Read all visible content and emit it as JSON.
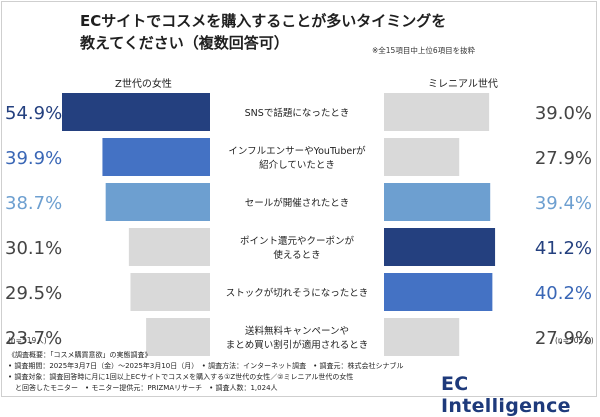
{
  "title_line1": "ECサイトでコスメを購入することが多いタイミングを",
  "title_line2": "教えてください（複数回答可）",
  "subnote": "※全15項目中上位6項目を抜粋",
  "left_group": "Z世代の女性",
  "right_group": "ミレニアル世代",
  "left_n": "(n=519人)",
  "right_n": "(n=505人)",
  "chart_data": {
    "type": "bar",
    "orientation": "horizontal-butterfly",
    "value_max": 54.9,
    "categories": [
      [
        "SNSで話題になったとき"
      ],
      [
        "インフルエンサーやYouTuberが",
        "紹介していたとき"
      ],
      [
        "セールが開催されたとき"
      ],
      [
        "ポイント還元やクーポンが",
        "使えるとき"
      ],
      [
        "ストックが切れそうになったとき"
      ],
      [
        "送料無料キャンペーンや",
        "まとめ買い割引が適用されるとき"
      ]
    ],
    "series": [
      {
        "name": "Z世代の女性",
        "values": [
          54.9,
          39.9,
          38.7,
          30.1,
          29.5,
          23.7
        ],
        "labels": [
          "54.9%",
          "39.9%",
          "38.7%",
          "30.1%",
          "29.5%",
          "23.7%"
        ],
        "colors": [
          "#24407f",
          "#4472c4",
          "#6d9fd0",
          "#d9d9d9",
          "#d9d9d9",
          "#d9d9d9"
        ],
        "label_colors": [
          "#24407f",
          "#3a67b6",
          "#6d9fd0",
          "#444444",
          "#444444",
          "#444444"
        ]
      },
      {
        "name": "ミレニアル世代",
        "values": [
          39.0,
          27.9,
          39.4,
          41.2,
          40.2,
          27.9
        ],
        "labels": [
          "39.0%",
          "27.9%",
          "39.4%",
          "41.2%",
          "40.2%",
          "27.9%"
        ],
        "colors": [
          "#d9d9d9",
          "#d9d9d9",
          "#6d9fd0",
          "#24407f",
          "#4472c4",
          "#d9d9d9"
        ],
        "label_colors": [
          "#444444",
          "#444444",
          "#6d9fd0",
          "#24407f",
          "#3a67b6",
          "#444444"
        ]
      }
    ]
  },
  "footnotes": [
    "《調査概要：「コスメ購買意欲」の実態調査》",
    "• 調査期間：2025年3月7日（金）〜2025年3月10日（月）　• 調査方法：インターネット調査　• 調査元：株式会社シナブル",
    "• 調査対象：調査回答時に月に1回以上ECサイトでコスメを購入する①Z世代の女性／②ミレニアル世代の女性",
    "　と回答したモニター　• モニター提供元：PRIZMAリサーチ　• 調査人数：1,024人"
  ],
  "logo": "EC Intelligence"
}
